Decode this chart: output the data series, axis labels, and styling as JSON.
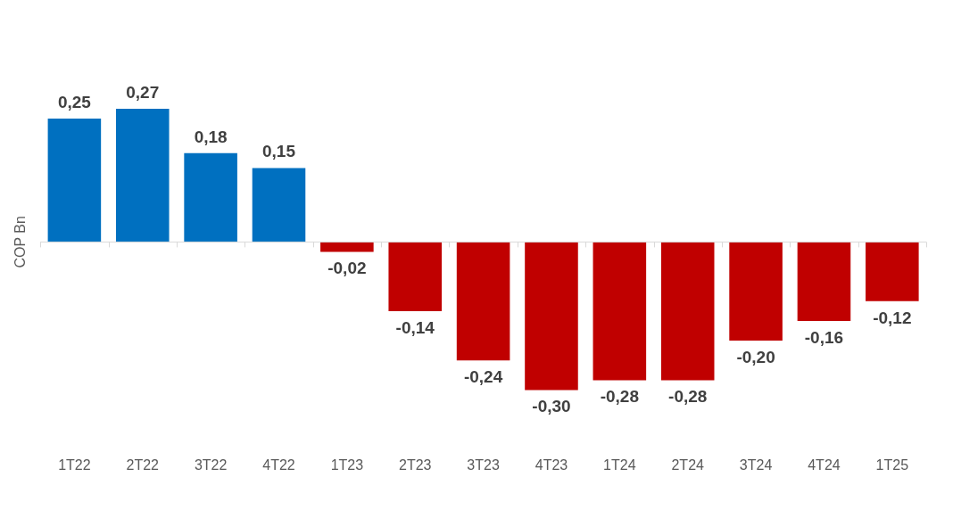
{
  "chart_data": {
    "type": "bar",
    "ylabel": "COP Bn",
    "categories": [
      "1T22",
      "2T22",
      "3T22",
      "4T22",
      "1T23",
      "2T23",
      "3T23",
      "4T23",
      "1T24",
      "2T24",
      "3T24",
      "4T24",
      "1T25"
    ],
    "values": [
      0.25,
      0.27,
      0.18,
      0.15,
      -0.02,
      -0.14,
      -0.24,
      -0.3,
      -0.28,
      -0.28,
      -0.2,
      -0.16,
      -0.12
    ],
    "colors": [
      "#0070c0",
      "#0070c0",
      "#0070c0",
      "#0070c0",
      "#c00000",
      "#c00000",
      "#c00000",
      "#c00000",
      "#c00000",
      "#c00000",
      "#c00000",
      "#c00000",
      "#c00000"
    ],
    "value_labels": [
      "0,25",
      "0,27",
      "0,18",
      "0,15",
      "-0,02",
      "-0,14",
      "-0,24",
      "-0,30",
      "-0,28",
      "-0,28",
      "-0,20",
      "-0,16",
      "-0,12"
    ],
    "grid": false,
    "legend": false
  }
}
